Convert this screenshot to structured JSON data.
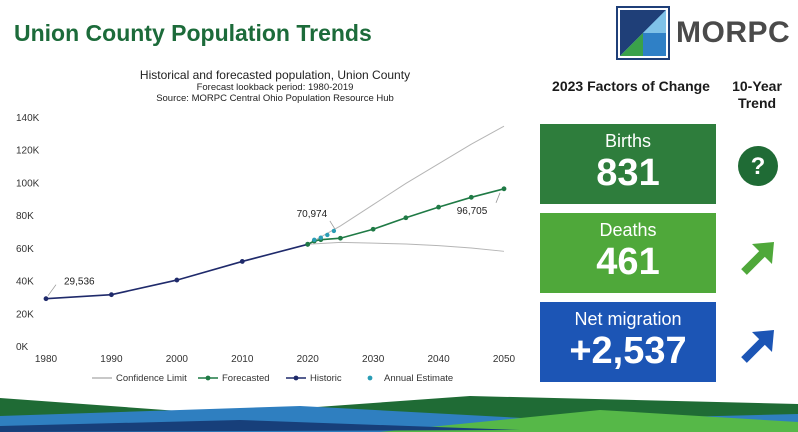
{
  "page": {
    "title": "Union County Population Trends"
  },
  "logo": {
    "text": "MORPC",
    "colors": {
      "dark": "#1f3f78",
      "green": "#3aa14a",
      "blue": "#2f80c6"
    }
  },
  "chart_data": {
    "type": "line",
    "title": "Historical and forecasted population, Union County",
    "subtitle": [
      "Forecast lookback period: 1980-2019",
      "Source: MORPC Central Ohio Population Resource Hub"
    ],
    "xlim": [
      1980,
      2050
    ],
    "ylim": [
      0,
      140000
    ],
    "x_ticks": [
      1980,
      1990,
      2000,
      2010,
      2020,
      2030,
      2040,
      2050
    ],
    "x_tick_labels": [
      "1980",
      "1990",
      "2000",
      "2010",
      "2020",
      "2030",
      "2040",
      "2050"
    ],
    "y_ticks": [
      0,
      20000,
      40000,
      60000,
      80000,
      100000,
      120000,
      140000
    ],
    "y_tick_labels": [
      "0K",
      "20K",
      "40K",
      "60K",
      "80K",
      "100K",
      "120K",
      "140K"
    ],
    "grid": false,
    "legend_position": "bottom",
    "series": [
      {
        "name": "Historic",
        "color": "#1f2a6b",
        "x": [
          1980,
          1990,
          2000,
          2010,
          2020
        ],
        "y": [
          29536,
          31969,
          40909,
          52300,
          62784
        ]
      },
      {
        "name": "Forecasted",
        "color": "#1f7a45",
        "x": [
          2020,
          2021,
          2022,
          2025,
          2030,
          2035,
          2040,
          2045,
          2050
        ],
        "y": [
          62784,
          64800,
          65600,
          66500,
          72000,
          79000,
          85500,
          91500,
          96705
        ]
      },
      {
        "name": "Annual Estimate",
        "color": "#2a9db5",
        "x": [
          2021,
          2022,
          2023,
          2024
        ],
        "y": [
          65500,
          66800,
          68500,
          70974
        ]
      },
      {
        "name": "Confidence Limit",
        "color": "#b5b5b5",
        "upper": {
          "x": [
            2020,
            2025,
            2030,
            2035,
            2040,
            2045,
            2050
          ],
          "y": [
            62784,
            74000,
            87000,
            100000,
            112000,
            124000,
            135000
          ]
        },
        "lower": {
          "x": [
            2020,
            2025,
            2030,
            2035,
            2040,
            2045,
            2050
          ],
          "y": [
            62784,
            64000,
            63500,
            63000,
            62000,
            60500,
            58500
          ]
        }
      }
    ],
    "annotations": [
      {
        "text": "29,536",
        "x": 1980,
        "y": 29536
      },
      {
        "text": "70,974",
        "x": 2024,
        "y": 70974
      },
      {
        "text": "96,705",
        "x": 2050,
        "y": 96705
      }
    ]
  },
  "factors": {
    "heading": "2023 Factors of Change",
    "trend_heading": "10-Year Trend",
    "cards": [
      {
        "label": "Births",
        "value": "831",
        "color": "#2e7d3c",
        "trend_icon": "question-icon"
      },
      {
        "label": "Deaths",
        "value": "461",
        "color": "#4fa83a",
        "trend_icon": "arrow-up-right-icon"
      },
      {
        "label": "Net migration",
        "value": "+2,537",
        "color": "#1c55b5",
        "trend_icon": "arrow-up-right-icon"
      }
    ]
  }
}
